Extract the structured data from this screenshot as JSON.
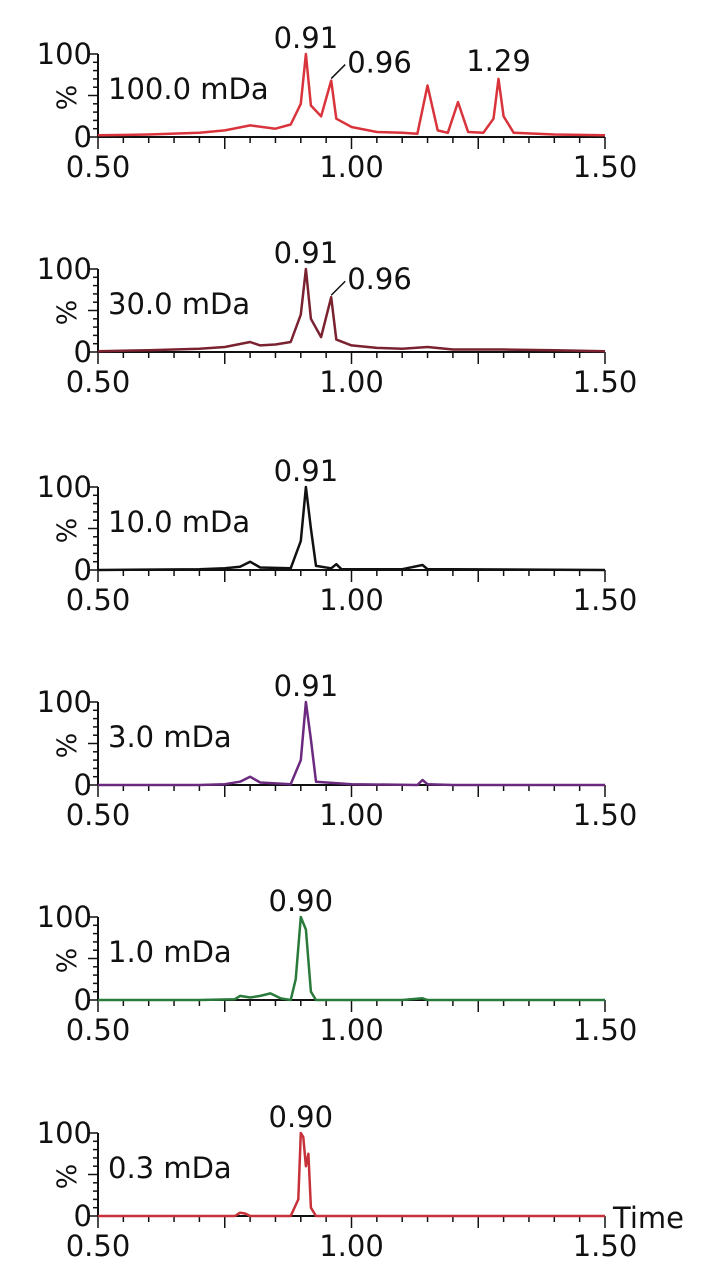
{
  "chart_data": [
    {
      "type": "line",
      "window_label": "100.0 mDa",
      "color": "#d9343c",
      "xlim": [
        0.5,
        1.5
      ],
      "ylim": [
        0,
        100
      ],
      "x_ticks": [
        "0.50",
        "1.00",
        "1.50"
      ],
      "y_ticks": [
        "100",
        "0"
      ],
      "ylabel": "%",
      "xlabel": "",
      "peaks": [
        {
          "x": 0.91,
          "y": 100,
          "label": "0.91"
        },
        {
          "x": 0.96,
          "y": 68,
          "label": "0.96"
        },
        {
          "x": 1.29,
          "y": 70,
          "label": "1.29"
        }
      ],
      "series": [
        {
          "x": [
            0.5,
            0.6,
            0.7,
            0.75,
            0.8,
            0.85,
            0.88,
            0.9,
            0.91,
            0.92,
            0.94,
            0.96,
            0.97,
            1.0,
            1.05,
            1.1,
            1.13,
            1.15,
            1.17,
            1.19,
            1.21,
            1.23,
            1.26,
            1.28,
            1.29,
            1.3,
            1.32,
            1.4,
            1.5
          ],
          "y": [
            2,
            3,
            5,
            8,
            14,
            10,
            15,
            40,
            100,
            38,
            25,
            68,
            22,
            12,
            6,
            5,
            4,
            62,
            8,
            5,
            42,
            6,
            5,
            22,
            70,
            25,
            5,
            3,
            2
          ]
        }
      ]
    },
    {
      "type": "line",
      "window_label": "30.0 mDa",
      "color": "#7a2230",
      "xlim": [
        0.5,
        1.5
      ],
      "ylim": [
        0,
        100
      ],
      "x_ticks": [
        "0.50",
        "1.00",
        "1.50"
      ],
      "y_ticks": [
        "100",
        "0"
      ],
      "ylabel": "%",
      "xlabel": "",
      "peaks": [
        {
          "x": 0.91,
          "y": 100,
          "label": "0.91"
        },
        {
          "x": 0.96,
          "y": 66,
          "label": "0.96"
        }
      ],
      "series": [
        {
          "x": [
            0.5,
            0.6,
            0.7,
            0.75,
            0.8,
            0.82,
            0.85,
            0.88,
            0.9,
            0.91,
            0.92,
            0.94,
            0.96,
            0.97,
            1.0,
            1.05,
            1.1,
            1.15,
            1.2,
            1.3,
            1.4,
            1.5
          ],
          "y": [
            1,
            2,
            4,
            6,
            12,
            8,
            9,
            12,
            45,
            100,
            40,
            18,
            66,
            15,
            8,
            5,
            4,
            6,
            3,
            3,
            2,
            1
          ]
        }
      ]
    },
    {
      "type": "line",
      "window_label": "10.0 mDa",
      "color": "#111111",
      "xlim": [
        0.5,
        1.5
      ],
      "ylim": [
        0,
        100
      ],
      "x_ticks": [
        "0.50",
        "1.00",
        "1.50"
      ],
      "y_ticks": [
        "100",
        "0"
      ],
      "ylabel": "%",
      "xlabel": "",
      "peaks": [
        {
          "x": 0.91,
          "y": 100,
          "label": "0.91"
        }
      ],
      "series": [
        {
          "x": [
            0.5,
            0.7,
            0.75,
            0.78,
            0.8,
            0.82,
            0.88,
            0.9,
            0.91,
            0.92,
            0.93,
            0.96,
            0.97,
            0.98,
            1.1,
            1.14,
            1.15,
            1.2,
            1.5
          ],
          "y": [
            0,
            1,
            2,
            4,
            10,
            3,
            2,
            35,
            100,
            50,
            5,
            2,
            7,
            1,
            1,
            6,
            1,
            1,
            0
          ]
        }
      ]
    },
    {
      "type": "line",
      "window_label": "3.0 mDa",
      "color": "#6b2a7f",
      "xlim": [
        0.5,
        1.5
      ],
      "ylim": [
        0,
        100
      ],
      "x_ticks": [
        "0.50",
        "1.00",
        "1.50"
      ],
      "y_ticks": [
        "100",
        "0"
      ],
      "ylabel": "%",
      "xlabel": "",
      "peaks": [
        {
          "x": 0.91,
          "y": 100,
          "label": "0.91"
        }
      ],
      "series": [
        {
          "x": [
            0.5,
            0.7,
            0.75,
            0.78,
            0.8,
            0.82,
            0.88,
            0.9,
            0.91,
            0.92,
            0.93,
            1.0,
            1.13,
            1.14,
            1.15,
            1.2,
            1.5
          ],
          "y": [
            0,
            0,
            1,
            4,
            10,
            3,
            1,
            30,
            100,
            55,
            4,
            1,
            0,
            6,
            1,
            0,
            0
          ]
        }
      ]
    },
    {
      "type": "line",
      "window_label": "1.0 mDa",
      "color": "#2a7a3c",
      "xlim": [
        0.5,
        1.5
      ],
      "ylim": [
        0,
        100
      ],
      "x_ticks": [
        "0.50",
        "1.00",
        "1.50"
      ],
      "y_ticks": [
        "100",
        "0"
      ],
      "ylabel": "%",
      "xlabel": "",
      "peaks": [
        {
          "x": 0.9,
          "y": 100,
          "label": "0.90"
        }
      ],
      "series": [
        {
          "x": [
            0.5,
            0.7,
            0.77,
            0.78,
            0.8,
            0.82,
            0.84,
            0.86,
            0.88,
            0.89,
            0.9,
            0.91,
            0.92,
            0.93,
            0.95,
            1.1,
            1.14,
            1.15,
            1.2,
            1.5
          ],
          "y": [
            0,
            0,
            1,
            5,
            3,
            5,
            8,
            2,
            0,
            25,
            100,
            85,
            10,
            0,
            0,
            0,
            2,
            0,
            0,
            0
          ]
        }
      ]
    },
    {
      "type": "line",
      "window_label": "0.3 mDa",
      "color": "#c7323a",
      "xlim": [
        0.5,
        1.5
      ],
      "ylim": [
        0,
        100
      ],
      "x_ticks": [
        "0.50",
        "1.00",
        "1.50"
      ],
      "y_ticks": [
        "100",
        "0"
      ],
      "ylabel": "%",
      "xlabel": "Time",
      "peaks": [
        {
          "x": 0.9,
          "y": 100,
          "label": "0.90"
        }
      ],
      "series": [
        {
          "x": [
            0.5,
            0.7,
            0.77,
            0.78,
            0.79,
            0.8,
            0.88,
            0.895,
            0.9,
            0.905,
            0.91,
            0.915,
            0.92,
            0.93,
            1.0,
            1.5
          ],
          "y": [
            0,
            0,
            0,
            4,
            3,
            0,
            0,
            20,
            100,
            95,
            60,
            75,
            10,
            0,
            0,
            0
          ]
        }
      ]
    }
  ]
}
